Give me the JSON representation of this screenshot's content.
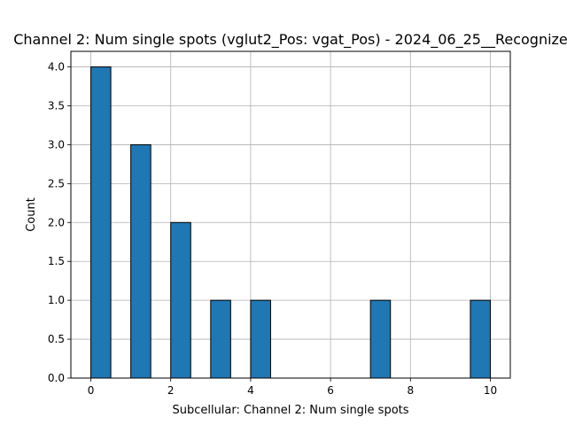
{
  "chart_data": {
    "type": "bar",
    "title": "Channel 2: Num single spots (vglut2_Pos: vgat_Pos) - 2024_06_25__Recognize",
    "xlabel": "Subcellular: Channel 2: Num single spots",
    "ylabel": "Count",
    "xlim": [
      -0.5,
      10.5
    ],
    "ylim": [
      0,
      4.2
    ],
    "bin_width": 0.5,
    "x": [
      0,
      1,
      2,
      3,
      4,
      7,
      9.5
    ],
    "values": [
      4,
      3,
      2,
      1,
      1,
      1,
      1
    ],
    "xticks": [
      0,
      2,
      4,
      6,
      8,
      10
    ],
    "xtick_labels": [
      "0",
      "2",
      "4",
      "6",
      "8",
      "10"
    ],
    "yticks": [
      0,
      0.5,
      1,
      1.5,
      2,
      2.5,
      3,
      3.5,
      4
    ],
    "ytick_labels": [
      "0.0",
      "0.5",
      "1.0",
      "1.5",
      "2.0",
      "2.5",
      "3.0",
      "3.5",
      "4.0"
    ],
    "grid": true,
    "bar_color": "#1f77b4",
    "edge_color": "#000000"
  }
}
